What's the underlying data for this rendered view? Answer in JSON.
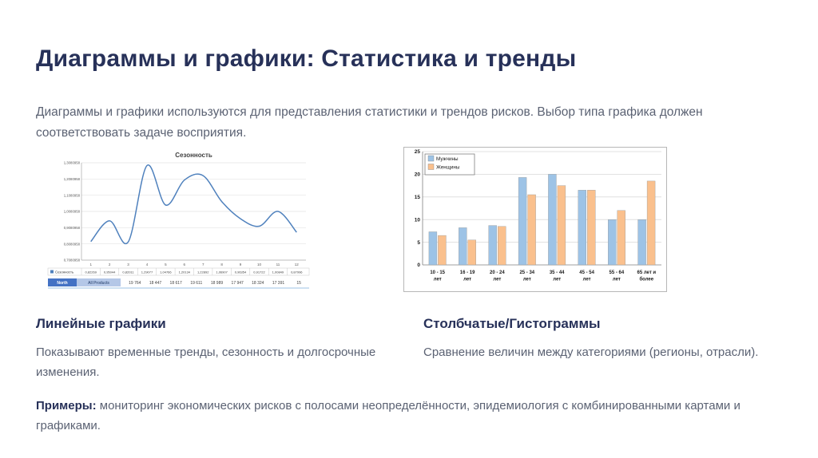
{
  "slide": {
    "title": "Диаграммы и графики: Статистика и тренды",
    "intro": "Диаграммы и графики используются для представления статистики и трендов рисков. Выбор типа графика должен соответствовать задаче восприятия.",
    "left_section": {
      "heading": "Линейные графики",
      "body": "Показывают временные тренды, сезонность и долгосрочные изменения."
    },
    "right_section": {
      "heading": "Столбчатые/Гистограммы",
      "body": "Сравнение величин между категориями (регионы, отрасли)."
    },
    "examples_label": "Примеры:",
    "examples_body": "мониторинг экономических рисков с полосами неопределённости, эпидемиология с комбинированными картами и графиками."
  },
  "chart_data": [
    {
      "type": "line",
      "title": "Сезонность",
      "x_tick_labels": [
        "1",
        "2",
        "3",
        "4",
        "5",
        "6",
        "7",
        "8",
        "9",
        "10",
        "11",
        "12"
      ],
      "series": [
        {
          "name": "Сезонность",
          "values": [
            0.82269,
            0.95044,
            0.82011,
            1.29077,
            1.04766,
            1.20134,
            1.22892,
            1.06907,
            0.96354,
            0.91722,
            1.00849,
            0.87996
          ]
        }
      ],
      "ylim": [
        0.7080958,
        1.3080958
      ],
      "y_tick_labels": [
        "0,7080958",
        "0,8080958",
        "0,9080958",
        "1,0080958",
        "1,1080958",
        "1,2080958",
        "1,3080958"
      ],
      "line_color": "#4f81bd",
      "grid": true,
      "legend_position": "table-row",
      "table": {
        "series_row_label": "Сезонность",
        "series_row_values": [
          "0,82269",
          "0,95044",
          "0,82011",
          "1,29077",
          "1,04766",
          "1,20134",
          "1,22892",
          "1,06907",
          "0,96354",
          "0,91722",
          "1,00849",
          "0,87996"
        ],
        "dimension_cells": [
          "North",
          "All Products"
        ],
        "totals_row_values": [
          "19 764",
          "18 447",
          "18 617",
          "19 611",
          "18 989",
          "17 947",
          "18 324",
          "17 391",
          "15"
        ]
      }
    },
    {
      "type": "bar",
      "categories": [
        "10 - 15 лет",
        "16 - 19 лет",
        "20 - 24 лет",
        "25 - 34 лет",
        "35 - 44 лет",
        "45 - 54 лет",
        "55 - 64 лет",
        "65 лет и более"
      ],
      "category_label_lines": [
        [
          "10 - 15",
          "лет"
        ],
        [
          "16 - 19",
          "лет"
        ],
        [
          "20 - 24",
          "лет"
        ],
        [
          "25 - 34",
          "лет"
        ],
        [
          "35 - 44",
          "лет"
        ],
        [
          "45 - 54",
          "лет"
        ],
        [
          "55 - 64",
          "лет"
        ],
        [
          "65 лет и",
          "более"
        ]
      ],
      "series": [
        {
          "name": "Мужчины",
          "color": "#9dc3e6",
          "values": [
            7.3,
            8.2,
            8.7,
            19.3,
            20,
            16.5,
            10,
            10
          ]
        },
        {
          "name": "Женщины",
          "color": "#fac08d",
          "values": [
            6.5,
            5.5,
            8.5,
            15.5,
            17.5,
            16.5,
            12,
            18.5
          ]
        }
      ],
      "ylim": [
        0,
        25
      ],
      "y_ticks": [
        0,
        5,
        10,
        15,
        20,
        25
      ],
      "grid": true,
      "legend_position": "top-left"
    }
  ]
}
